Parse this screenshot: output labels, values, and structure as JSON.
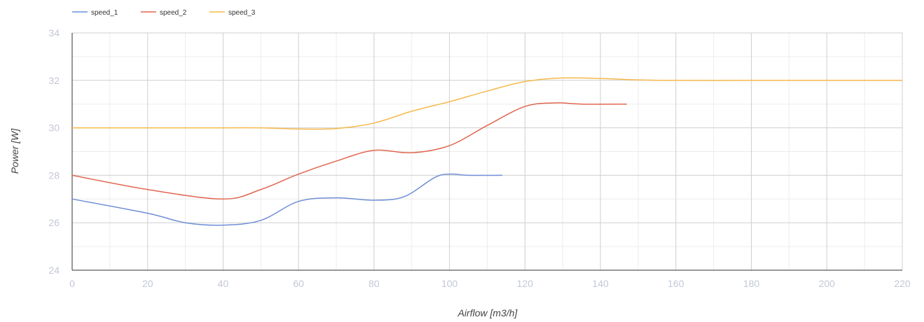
{
  "chart_data": {
    "type": "line",
    "xlabel": "Airflow [m3/h]",
    "ylabel": "Power [W]",
    "xlim": [
      0,
      220
    ],
    "ylim": [
      24,
      34
    ],
    "x_ticks": [
      0,
      20,
      40,
      60,
      80,
      100,
      120,
      140,
      160,
      180,
      200,
      220
    ],
    "y_ticks": [
      24,
      26,
      28,
      30,
      32,
      34
    ],
    "grid": true,
    "legend_position": "top-left",
    "series": [
      {
        "name": "speed_1",
        "color": "#6f8fd6",
        "x": [
          0,
          20,
          30,
          40,
          50,
          60,
          70,
          80,
          88,
          96,
          100,
          105,
          114
        ],
        "y": [
          27,
          26.4,
          26,
          25.9,
          26.1,
          26.9,
          27.05,
          26.95,
          27.1,
          27.9,
          28.05,
          28,
          28
        ]
      },
      {
        "name": "speed_2",
        "color": "#e0674f",
        "x": [
          0,
          20,
          40,
          50,
          60,
          70,
          80,
          90,
          100,
          110,
          120,
          128,
          135,
          147
        ],
        "y": [
          28,
          27.4,
          27,
          27.4,
          28.05,
          28.6,
          29.05,
          28.95,
          29.25,
          30.1,
          30.9,
          31.05,
          31,
          31
        ]
      },
      {
        "name": "speed_3",
        "color": "#f5b94b",
        "x": [
          0,
          20,
          40,
          50,
          60,
          70,
          80,
          90,
          100,
          110,
          120,
          130,
          140,
          150,
          160,
          180,
          200,
          220
        ],
        "y": [
          30,
          30,
          30,
          30,
          29.95,
          29.97,
          30.2,
          30.7,
          31.1,
          31.55,
          31.95,
          32.1,
          32.08,
          32.02,
          32,
          32,
          32,
          32
        ]
      }
    ]
  }
}
